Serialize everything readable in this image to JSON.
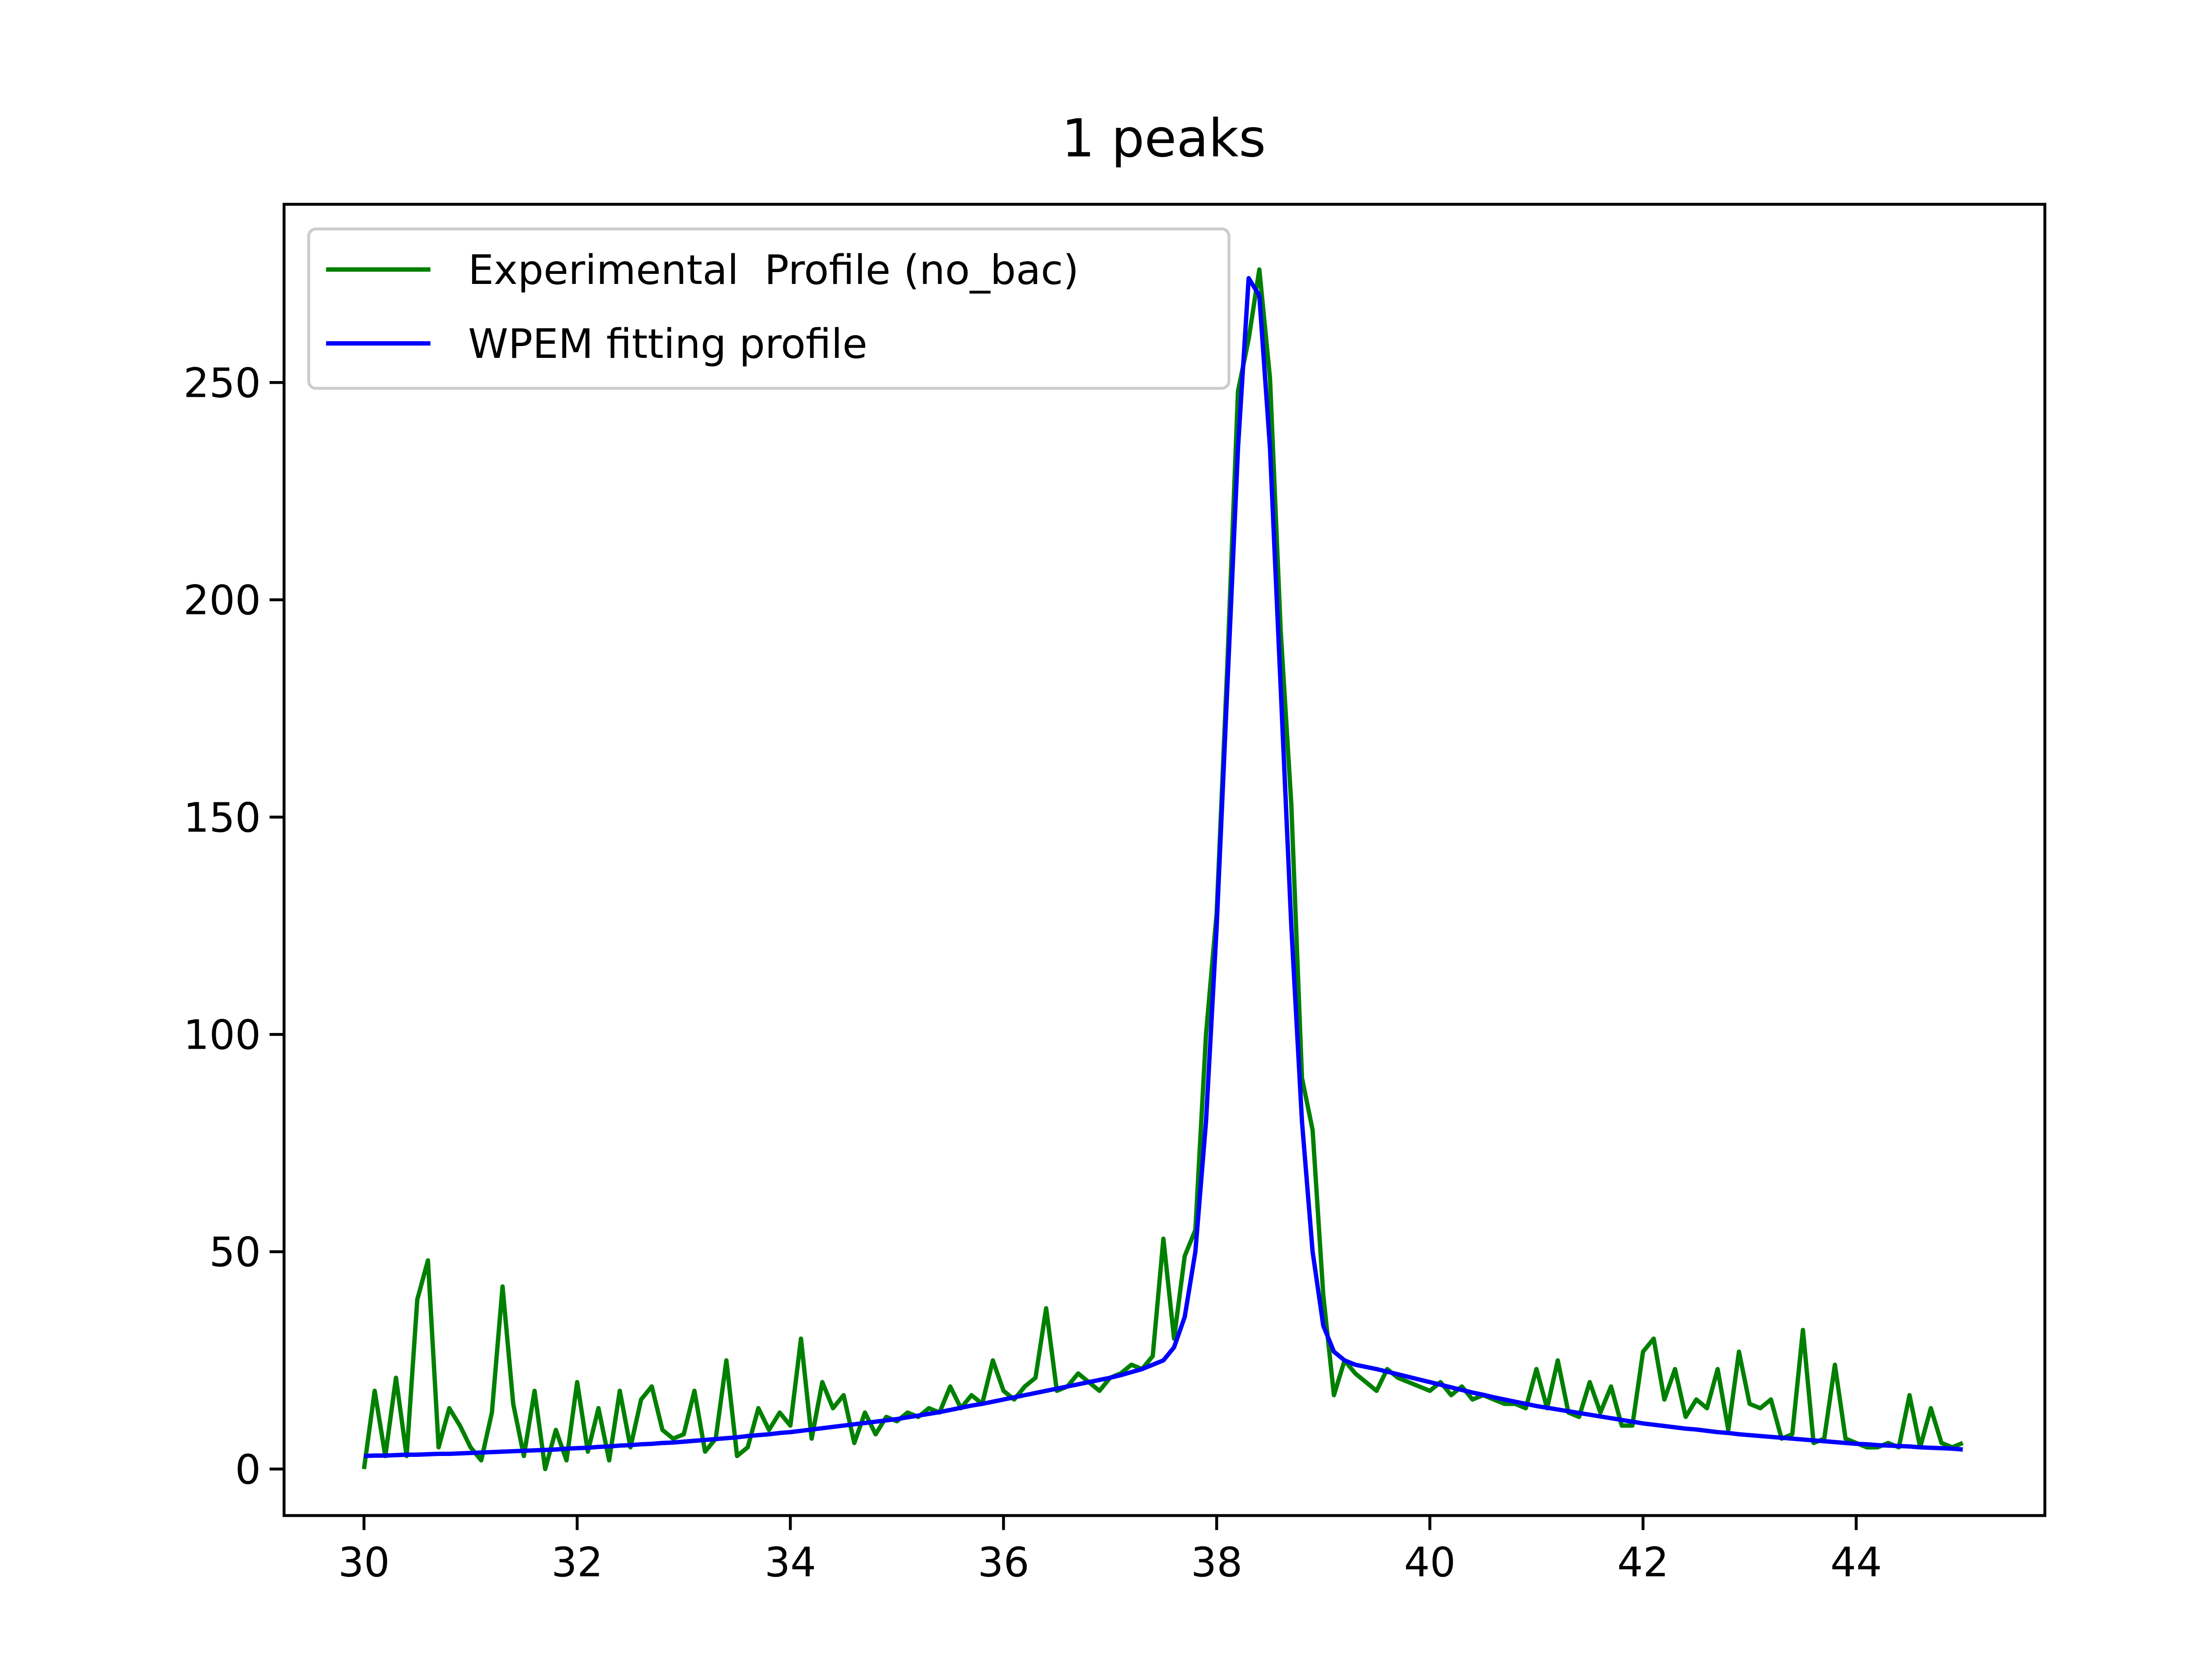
{
  "chart_data": {
    "type": "line",
    "title": "1 peaks",
    "x": [
      30.0,
      30.1,
      30.2,
      30.3,
      30.4,
      30.5,
      30.6,
      30.7,
      30.8,
      30.9,
      31.0,
      31.1,
      31.2,
      31.3,
      31.4,
      31.5,
      31.6,
      31.7,
      31.8,
      31.9,
      32.0,
      32.1,
      32.2,
      32.3,
      32.4,
      32.5,
      32.6,
      32.7,
      32.8,
      32.9,
      33.0,
      33.1,
      33.2,
      33.3,
      33.4,
      33.5,
      33.6,
      33.7,
      33.8,
      33.9,
      34.0,
      34.1,
      34.2,
      34.3,
      34.4,
      34.5,
      34.6,
      34.7,
      34.8,
      34.9,
      35.0,
      35.1,
      35.2,
      35.3,
      35.4,
      35.5,
      35.6,
      35.7,
      35.8,
      35.9,
      36.0,
      36.1,
      36.2,
      36.3,
      36.4,
      36.5,
      36.6,
      36.7,
      36.8,
      36.9,
      37.0,
      37.1,
      37.2,
      37.3,
      37.4,
      37.5,
      37.6,
      37.7,
      37.8,
      37.9,
      38.0,
      38.1,
      38.2,
      38.3,
      38.4,
      38.5,
      38.6,
      38.7,
      38.8,
      38.9,
      39.0,
      39.1,
      39.2,
      39.3,
      39.4,
      39.5,
      39.6,
      39.7,
      39.8,
      39.9,
      40.0,
      40.1,
      40.2,
      40.3,
      40.4,
      40.5,
      40.6,
      40.7,
      40.8,
      40.9,
      41.0,
      41.1,
      41.2,
      41.3,
      41.4,
      41.5,
      41.6,
      41.7,
      41.8,
      41.9,
      42.0,
      42.1,
      42.2,
      42.3,
      42.4,
      42.5,
      42.6,
      42.7,
      42.8,
      42.9,
      43.0,
      43.1,
      43.2,
      43.3,
      43.4,
      43.5,
      43.6,
      43.7,
      43.8,
      43.9,
      44.0,
      44.1,
      44.2,
      44.3,
      44.4,
      44.5,
      44.6,
      44.7,
      44.8,
      44.9,
      45.0
    ],
    "series": [
      {
        "name": "Experimental  Profile (no_bac)",
        "color": "#008000",
        "values": [
          0,
          18,
          3,
          21,
          3,
          39,
          48,
          5,
          14,
          10,
          5,
          2,
          13,
          42,
          15,
          3,
          18,
          0,
          9,
          2,
          20,
          4,
          14,
          2,
          18,
          5,
          16,
          19,
          9,
          7,
          8,
          18,
          4,
          7,
          25,
          3,
          5,
          14,
          9,
          13,
          10,
          30,
          7,
          20,
          14,
          17,
          6,
          13,
          8,
          12,
          11,
          13,
          12,
          14,
          13,
          19,
          14,
          17,
          15,
          25,
          18,
          16,
          19,
          21,
          37,
          18,
          19,
          22,
          20,
          18,
          21,
          22,
          24,
          23,
          26,
          53,
          30,
          49,
          55,
          100,
          128,
          185,
          248,
          260,
          276,
          251,
          193,
          153,
          90,
          78,
          40,
          17,
          25,
          22,
          20,
          18,
          23,
          21,
          20,
          19,
          18,
          20,
          17,
          19,
          16,
          17,
          16,
          15,
          15,
          14,
          23,
          14,
          25,
          13,
          12,
          20,
          13,
          19,
          10,
          10,
          27,
          30,
          16,
          23,
          12,
          16,
          14,
          23,
          9,
          27,
          15,
          14,
          16,
          7,
          8,
          32,
          6,
          7,
          24,
          7,
          6,
          5,
          5,
          6,
          5,
          17,
          5,
          14,
          6,
          5,
          6
        ]
      },
      {
        "name": "WPEM fitting profile",
        "color": "#0000ff",
        "values": [
          3.0,
          3.1,
          3.1,
          3.2,
          3.3,
          3.3,
          3.4,
          3.5,
          3.5,
          3.6,
          3.7,
          3.8,
          3.9,
          4.0,
          4.1,
          4.2,
          4.3,
          4.4,
          4.5,
          4.7,
          4.8,
          4.9,
          5.1,
          5.2,
          5.4,
          5.5,
          5.7,
          5.8,
          6.0,
          6.1,
          6.3,
          6.5,
          6.7,
          6.9,
          7.1,
          7.3,
          7.6,
          7.8,
          8.0,
          8.3,
          8.5,
          8.8,
          9.1,
          9.4,
          9.7,
          10.0,
          10.3,
          10.6,
          10.9,
          11.2,
          11.5,
          11.9,
          12.3,
          12.7,
          13.1,
          13.6,
          14.1,
          14.6,
          15.0,
          15.5,
          16.0,
          16.5,
          17.0,
          17.5,
          18.0,
          18.5,
          19.0,
          19.5,
          20.0,
          20.5,
          21.0,
          21.6,
          22.3,
          23.0,
          24.0,
          25.0,
          28.0,
          35.0,
          50.0,
          80.0,
          125,
          180,
          235,
          274,
          270,
          235,
          180,
          125,
          80,
          50,
          33,
          27,
          25,
          24,
          23.5,
          23,
          22.4,
          21.8,
          21.2,
          20.6,
          20.0,
          19.4,
          18.8,
          18.2,
          17.6,
          17.1,
          16.5,
          16.0,
          15.5,
          15.0,
          14.5,
          14.1,
          13.7,
          13.3,
          12.9,
          12.5,
          12.1,
          11.7,
          11.3,
          10.9,
          10.5,
          10.2,
          9.9,
          9.6,
          9.3,
          9.1,
          8.8,
          8.5,
          8.3,
          8.0,
          7.8,
          7.6,
          7.4,
          7.2,
          7.0,
          6.8,
          6.6,
          6.4,
          6.2,
          6.0,
          5.8,
          5.7,
          5.5,
          5.4,
          5.3,
          5.2,
          5.0,
          4.9,
          4.8,
          4.7,
          4.5
        ]
      }
    ],
    "xlim": [
      29.25,
      45.77
    ],
    "xticks": [
      30,
      32,
      34,
      36,
      38,
      40,
      42,
      44
    ],
    "ylim": [
      -10.7,
      291.0
    ],
    "yticks": [
      0,
      50,
      100,
      150,
      200,
      250
    ],
    "legend": "upper left"
  }
}
